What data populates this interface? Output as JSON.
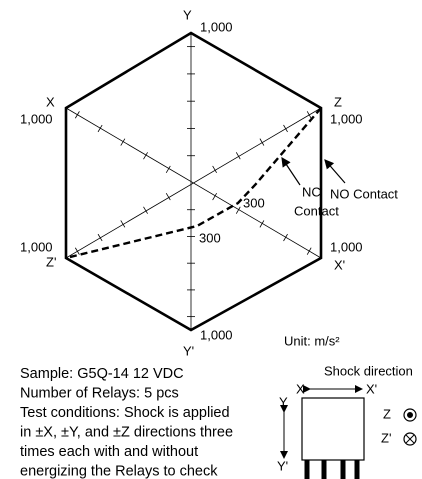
{
  "vertices": [
    {
      "axis": "Y",
      "value": "1,000"
    },
    {
      "axis": "Z",
      "value": "1,000"
    },
    {
      "axis": "X'",
      "value": "1,000"
    },
    {
      "axis": "Y'",
      "value": "1,000"
    },
    {
      "axis": "Z'",
      "value": "1,000"
    },
    {
      "axis": "X",
      "value": "1,000"
    }
  ],
  "nc_label": [
    "NC",
    "Contact"
  ],
  "no_label": "NO Contact",
  "scale_labels": [
    "300",
    "300"
  ],
  "unit": "Unit: m/s²",
  "notes": [
    "Sample: G5Q-14 12 VDC",
    "Number of Relays: 5 pcs",
    "Test conditions: Shock is applied",
    "in ±X, ±Y, and ±Z directions three",
    "times each with and without",
    "energizing the Relays to check"
  ],
  "shock_direction": {
    "title": "Shock direction",
    "x": "X",
    "x_prime": "X'",
    "y": "Y",
    "y_prime": "Y'",
    "z": "Z",
    "z_prime": "Z'"
  }
}
